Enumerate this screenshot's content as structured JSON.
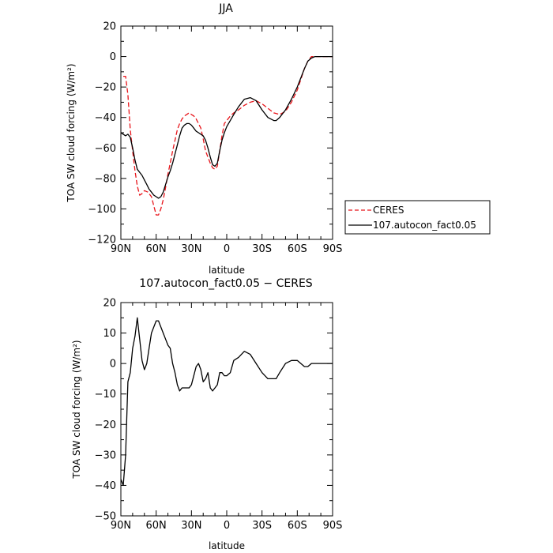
{
  "chart_data": [
    {
      "type": "line",
      "title": "JJA",
      "xlabel": "latitude",
      "ylabel": "TOA SW cloud forcing (W/m²)",
      "xlim": [
        90,
        -90
      ],
      "ylim": [
        -120,
        20
      ],
      "x_ticks": [
        90,
        60,
        30,
        0,
        -30,
        -60,
        -90
      ],
      "x_tick_labels": [
        "90N",
        "60N",
        "30N",
        "0",
        "30S",
        "60S",
        "90S"
      ],
      "y_ticks": [
        20,
        0,
        -20,
        -40,
        -60,
        -80,
        -100,
        -120
      ],
      "y_tick_labels": [
        "20",
        "0",
        "−20",
        "−40",
        "−60",
        "−80",
        "−100",
        "−120"
      ],
      "legend": {
        "placement": "outside-right",
        "entries": [
          "CERES",
          "107.autocon_fact0.05"
        ]
      },
      "series": [
        {
          "name": "CERES",
          "color": "#e8141a",
          "dash": "dashed",
          "x": [
            88,
            86,
            84,
            82,
            80,
            78,
            76,
            74,
            72,
            70,
            67,
            64,
            62,
            60,
            58,
            56,
            54,
            52,
            50,
            48,
            46,
            44,
            42,
            40,
            38,
            36,
            34,
            32,
            30,
            28,
            26,
            24,
            22,
            20,
            18,
            16,
            14,
            12,
            10,
            8,
            6,
            4,
            2,
            0,
            -3,
            -6,
            -10,
            -15,
            -20,
            -25,
            -30,
            -35,
            -40,
            -45,
            -50,
            -55,
            -60,
            -63,
            -66,
            -69,
            -72,
            -75,
            -80,
            -85,
            -90
          ],
          "y": [
            -13,
            -13,
            -25,
            -48,
            -62,
            -75,
            -85,
            -91,
            -90,
            -88,
            -89,
            -92,
            -98,
            -104,
            -104,
            -100,
            -94,
            -86,
            -77,
            -70,
            -62,
            -55,
            -48,
            -44,
            -41,
            -39,
            -38,
            -37,
            -38,
            -39,
            -41,
            -44,
            -47,
            -54,
            -62,
            -66,
            -70,
            -73,
            -74,
            -72,
            -62,
            -52,
            -44,
            -42,
            -39,
            -37,
            -35,
            -32,
            -30,
            -29,
            -31,
            -34,
            -37,
            -38,
            -36,
            -30,
            -22,
            -15,
            -8,
            -3,
            0,
            0,
            0,
            0,
            0
          ]
        },
        {
          "name": "107.autocon_fact0.05",
          "color": "#000000",
          "dash": "solid",
          "x": [
            90,
            88,
            86,
            84,
            82,
            80,
            78,
            76,
            74,
            72,
            70,
            68,
            66,
            64,
            62,
            60,
            58,
            56,
            54,
            52,
            50,
            48,
            46,
            44,
            42,
            40,
            38,
            36,
            34,
            32,
            30,
            28,
            26,
            24,
            22,
            20,
            18,
            16,
            14,
            12,
            10,
            8,
            6,
            4,
            2,
            0,
            -3,
            -6,
            -10,
            -15,
            -20,
            -25,
            -30,
            -35,
            -40,
            -42,
            -45,
            -50,
            -55,
            -60,
            -63,
            -66,
            -69,
            -72,
            -75,
            -80,
            -85,
            -90
          ],
          "y": [
            -50,
            -51,
            -52,
            -51,
            -53,
            -60,
            -68,
            -74,
            -76,
            -78,
            -81,
            -84,
            -87,
            -89,
            -91,
            -92,
            -93,
            -92,
            -89,
            -84,
            -79,
            -75,
            -70,
            -64,
            -58,
            -52,
            -47,
            -45,
            -44,
            -44,
            -45,
            -47,
            -49,
            -50,
            -51,
            -52,
            -55,
            -60,
            -66,
            -71,
            -72,
            -70,
            -62,
            -55,
            -50,
            -46,
            -42,
            -38,
            -33,
            -28,
            -27,
            -29,
            -35,
            -40,
            -42,
            -42,
            -40,
            -35,
            -28,
            -20,
            -14,
            -8,
            -3,
            -1,
            0,
            0,
            0,
            0
          ]
        }
      ]
    },
    {
      "type": "line",
      "title": "107.autocon_fact0.05 − CERES",
      "xlabel": "latitude",
      "ylabel": "TOA SW cloud forcing (W/m²)",
      "xlim": [
        90,
        -90
      ],
      "ylim": [
        -50,
        20
      ],
      "x_ticks": [
        90,
        60,
        30,
        0,
        -30,
        -60,
        -90
      ],
      "x_tick_labels": [
        "90N",
        "60N",
        "30N",
        "0",
        "30S",
        "60S",
        "90S"
      ],
      "y_ticks": [
        20,
        10,
        0,
        -10,
        -20,
        -30,
        -40,
        -50
      ],
      "y_tick_labels": [
        "20",
        "10",
        "0",
        "−10",
        "−20",
        "−30",
        "−40",
        "−50"
      ],
      "series": [
        {
          "color": "#000000",
          "dash": "solid",
          "x": [
            90,
            88,
            86,
            84,
            82,
            80,
            78,
            76,
            74,
            72,
            70,
            68,
            66,
            64,
            62,
            60,
            58,
            56,
            54,
            52,
            50,
            48,
            46,
            44,
            42,
            40,
            38,
            36,
            34,
            32,
            30,
            28,
            26,
            24,
            22,
            20,
            18,
            16,
            14,
            12,
            10,
            8,
            6,
            4,
            2,
            0,
            -3,
            -6,
            -10,
            -15,
            -20,
            -25,
            -30,
            -35,
            -40,
            -42,
            -45,
            -50,
            -55,
            -60,
            -63,
            -66,
            -69,
            -72,
            -75,
            -80,
            -85,
            -90
          ],
          "y": [
            -38,
            -40,
            -30,
            -6,
            -3,
            5,
            9,
            15,
            8,
            1,
            -2,
            0,
            5,
            10,
            12,
            14,
            14,
            12,
            10,
            8,
            6,
            5,
            0,
            -3,
            -7,
            -9,
            -8,
            -8,
            -8,
            -8,
            -7,
            -4,
            -1,
            0,
            -2,
            -6,
            -5,
            -3,
            -8,
            -9,
            -8,
            -7,
            -3,
            -3,
            -4,
            -4,
            -3,
            1,
            2,
            4,
            3,
            0,
            -3,
            -5,
            -5,
            -5,
            -3,
            0,
            1,
            1,
            0,
            -1,
            -1,
            0,
            0,
            0,
            0,
            0
          ]
        }
      ]
    }
  ]
}
